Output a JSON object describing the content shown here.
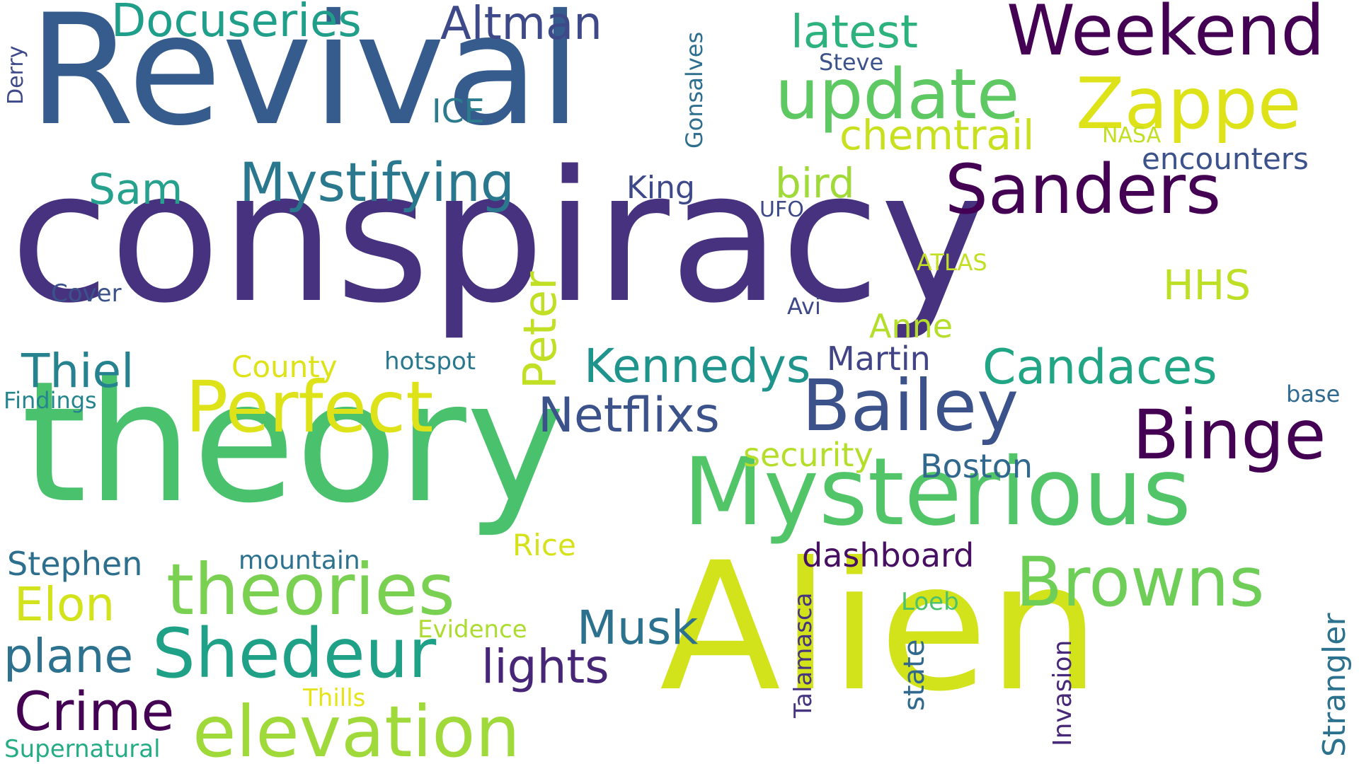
{
  "word_cloud": {
    "background": "#ffffff",
    "words": [
      {
        "text": "conspiracy",
        "color": "#46327e"
      },
      {
        "text": "Revival",
        "color": "#365c8d"
      },
      {
        "text": "theory",
        "color": "#4ac16d"
      },
      {
        "text": "Alien",
        "color": "#d2e21b"
      },
      {
        "text": "Mysterious",
        "color": "#52c569"
      },
      {
        "text": "Weekend",
        "color": "#440154"
      },
      {
        "text": "update",
        "color": "#5ec962"
      },
      {
        "text": "Zappe",
        "color": "#dde318"
      },
      {
        "text": "Sanders",
        "color": "#440154"
      },
      {
        "text": "Bailey",
        "color": "#3b528b"
      },
      {
        "text": "Binge",
        "color": "#440154"
      },
      {
        "text": "Perfect",
        "color": "#dde318"
      },
      {
        "text": "theories",
        "color": "#7ad151"
      },
      {
        "text": "Browns",
        "color": "#6ece58"
      },
      {
        "text": "Shedeur",
        "color": "#1fa187"
      },
      {
        "text": "elevation",
        "color": "#9fda3a"
      },
      {
        "text": "Docuseries",
        "color": "#1f9e89"
      },
      {
        "text": "Altman",
        "color": "#3e4989"
      },
      {
        "text": "latest",
        "color": "#2db27d"
      },
      {
        "text": "Mystifying",
        "color": "#2a788e"
      },
      {
        "text": "chemtrail",
        "color": "#c8e020"
      },
      {
        "text": "Netflixs",
        "color": "#3b528b"
      },
      {
        "text": "Kennedys",
        "color": "#1f948c"
      },
      {
        "text": "Candaces",
        "color": "#21a685"
      },
      {
        "text": "Thiel",
        "color": "#26828e"
      },
      {
        "text": "Crime",
        "color": "#440154"
      },
      {
        "text": "Peter",
        "color": "#c0df25"
      },
      {
        "text": "Musk",
        "color": "#2c728e"
      },
      {
        "text": "lights",
        "color": "#482677"
      },
      {
        "text": "plane",
        "color": "#2c728e"
      },
      {
        "text": "Elon",
        "color": "#d2e21b"
      },
      {
        "text": "Sam",
        "color": "#25a18e"
      },
      {
        "text": "bird",
        "color": "#a0da39"
      },
      {
        "text": "HHS",
        "color": "#bddf26"
      },
      {
        "text": "encounters",
        "color": "#3b528b"
      },
      {
        "text": "dashboard",
        "color": "#471063"
      },
      {
        "text": "Boston",
        "color": "#31688e"
      },
      {
        "text": "security",
        "color": "#b5de2b"
      },
      {
        "text": "Martin",
        "color": "#414487"
      },
      {
        "text": "Anne",
        "color": "#b5de2b"
      },
      {
        "text": "Stephen",
        "color": "#2e6f8e"
      },
      {
        "text": "ICE",
        "color": "#2c7c8e"
      },
      {
        "text": "King",
        "color": "#3e4989"
      },
      {
        "text": "Strangler",
        "color": "#2c728e"
      },
      {
        "text": "Invasion",
        "color": "#482878"
      },
      {
        "text": "Talamasca",
        "color": "#463480"
      },
      {
        "text": "state",
        "color": "#31688e"
      },
      {
        "text": "Rice",
        "color": "#d5e21a"
      },
      {
        "text": "mountain",
        "color": "#2c728e"
      },
      {
        "text": "County",
        "color": "#dde318"
      },
      {
        "text": "hotspot",
        "color": "#2a788e"
      },
      {
        "text": "Gonsalves",
        "color": "#2e6e8e"
      },
      {
        "text": "Steve",
        "color": "#3b528b"
      },
      {
        "text": "NASA",
        "color": "#c2df23"
      },
      {
        "text": "UFO",
        "color": "#3e4989"
      },
      {
        "text": "ATLAS",
        "color": "#c2df23"
      },
      {
        "text": "Cover",
        "color": "#3b528b"
      },
      {
        "text": "Avi",
        "color": "#3e4989"
      },
      {
        "text": "Findings",
        "color": "#25858e"
      },
      {
        "text": "base",
        "color": "#306a8e"
      },
      {
        "text": "Loeb",
        "color": "#4ac16d"
      },
      {
        "text": "Evidence",
        "color": "#addc30"
      },
      {
        "text": "Thills",
        "color": "#e5e419"
      },
      {
        "text": "Supernatural",
        "color": "#25ac82"
      },
      {
        "text": "Derry",
        "color": "#3e4989"
      }
    ]
  }
}
